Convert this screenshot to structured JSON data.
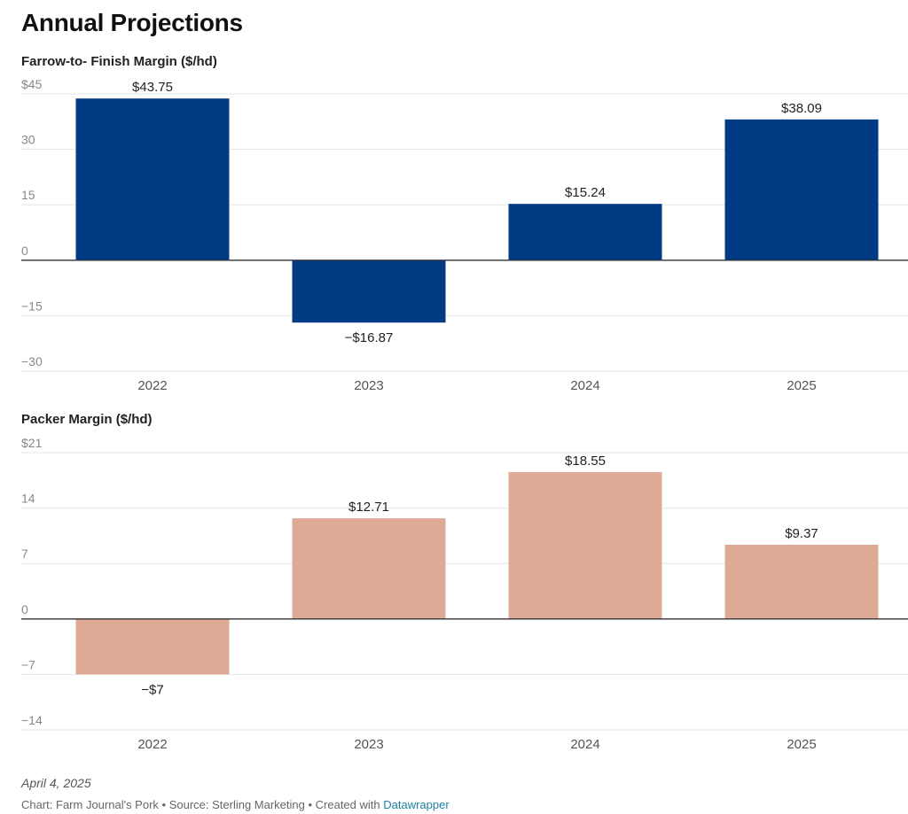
{
  "title": "Annual Projections",
  "colors": {
    "series1": "#003b83",
    "series2": "#deaa95",
    "grid": "#e6e6e6",
    "zero_line": "#333333",
    "link": "#1d81a2"
  },
  "chart_data": [
    {
      "type": "bar",
      "title": "Farrow-to- Finish Margin ($/hd)",
      "categories": [
        "2022",
        "2023",
        "2024",
        "2025"
      ],
      "values": [
        43.75,
        -16.87,
        15.24,
        38.09
      ],
      "value_labels": [
        "$43.75",
        "−$16.87",
        "$15.24",
        "$38.09"
      ],
      "yticks": [
        45,
        30,
        15,
        0,
        -15,
        -30
      ],
      "ytick_labels": [
        "$45",
        "30",
        "15",
        "0",
        "−15",
        "−30"
      ],
      "ylim": [
        -30,
        45
      ],
      "grid": true
    },
    {
      "type": "bar",
      "title": "Packer Margin ($/hd)",
      "categories": [
        "2022",
        "2023",
        "2024",
        "2025"
      ],
      "values": [
        -7,
        12.71,
        18.55,
        9.37
      ],
      "value_labels": [
        "−$7",
        "$12.71",
        "$18.55",
        "$9.37"
      ],
      "yticks": [
        21,
        14,
        7,
        0,
        -7,
        -14
      ],
      "ytick_labels": [
        "$21",
        "14",
        "7",
        "0",
        "−7",
        "−14"
      ],
      "ylim": [
        -14,
        21
      ],
      "grid": true
    }
  ],
  "footer": {
    "date": "April 4, 2025",
    "credit": "Chart: Farm Journal's Pork • Source: Sterling Marketing • Created with",
    "link_text": "Datawrapper"
  }
}
